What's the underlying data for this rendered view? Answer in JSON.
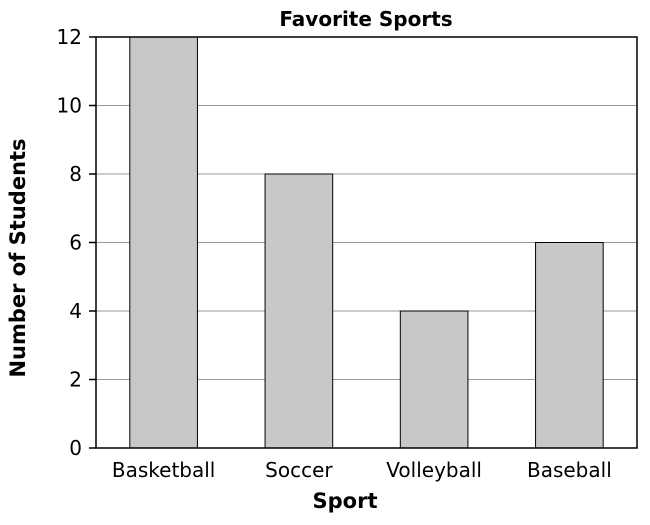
{
  "chart_data": {
    "type": "bar",
    "title": "Favorite Sports",
    "xlabel": "Sport",
    "ylabel": "Number of Students",
    "categories": [
      "Basketball",
      "Soccer",
      "Volleyball",
      "Baseball"
    ],
    "values": [
      12,
      8,
      4,
      6
    ],
    "ylim": [
      0,
      12
    ],
    "yticks": [
      0,
      2,
      4,
      6,
      8,
      10,
      12
    ],
    "grid": true,
    "legend": "none",
    "bar_color": "#c8c8c8",
    "bar_outline_color": "#000000",
    "grid_color": "#9a9a9a"
  }
}
